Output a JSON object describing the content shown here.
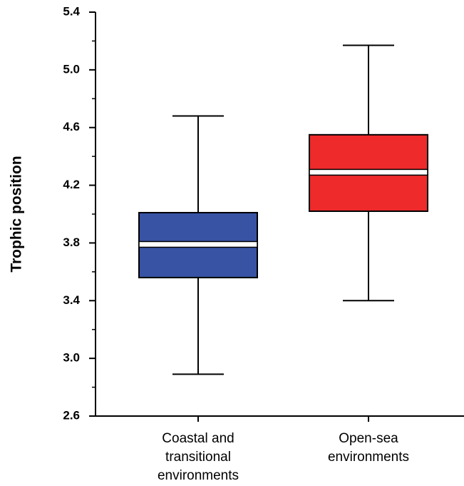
{
  "chart_data": {
    "type": "box",
    "ylabel": "Trophic position",
    "categories": [
      "Coastal and\ntransitional\nenvironments",
      "Open-sea\nenvironments"
    ],
    "boxes": [
      {
        "min": 2.89,
        "q1": 3.56,
        "median": 3.79,
        "q3": 4.01,
        "max": 4.68,
        "color": "#3853a4"
      },
      {
        "min": 3.4,
        "q1": 4.02,
        "median": 4.29,
        "q3": 4.55,
        "max": 5.17,
        "color": "#ee2a2a"
      }
    ],
    "ylim": [
      2.6,
      5.4
    ],
    "yticks": [
      2.6,
      {
        "value": 3,
        "label": "3.0"
      },
      3.4,
      3.8,
      4.2,
      4.6,
      {
        "value": 5,
        "label": "5.0"
      },
      5.4
    ],
    "minor_yticks": [
      2.8,
      3.2,
      3.6,
      4.0,
      4.4,
      4.8,
      5.2
    ]
  }
}
